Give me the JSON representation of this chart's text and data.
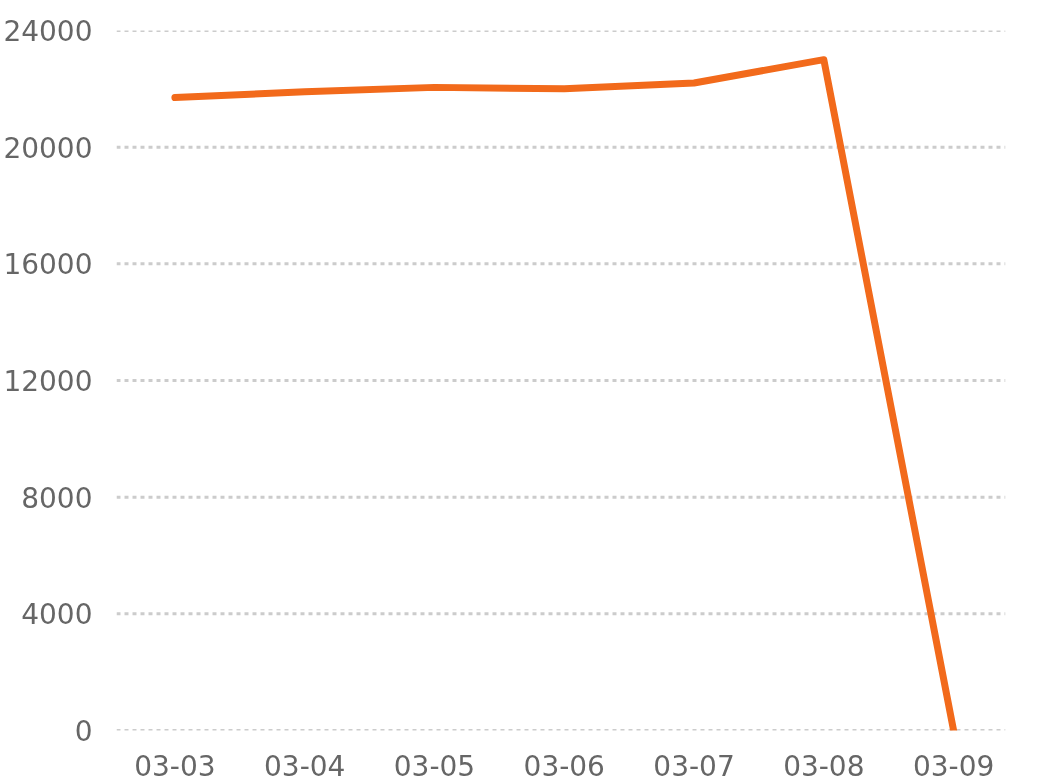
{
  "chart_data": {
    "type": "line",
    "categories": [
      "03-03",
      "03-04",
      "03-05",
      "03-06",
      "03-07",
      "03-08",
      "03-09"
    ],
    "series": [
      {
        "color": "#f26a1b",
        "values": [
          21700,
          21900,
          22050,
          22000,
          22200,
          23000,
          0
        ]
      }
    ],
    "ylim": [
      0,
      24000
    ],
    "yticks": [
      0,
      4000,
      8000,
      12000,
      16000,
      20000,
      24000
    ],
    "grid": "y",
    "line_style": "solid"
  }
}
